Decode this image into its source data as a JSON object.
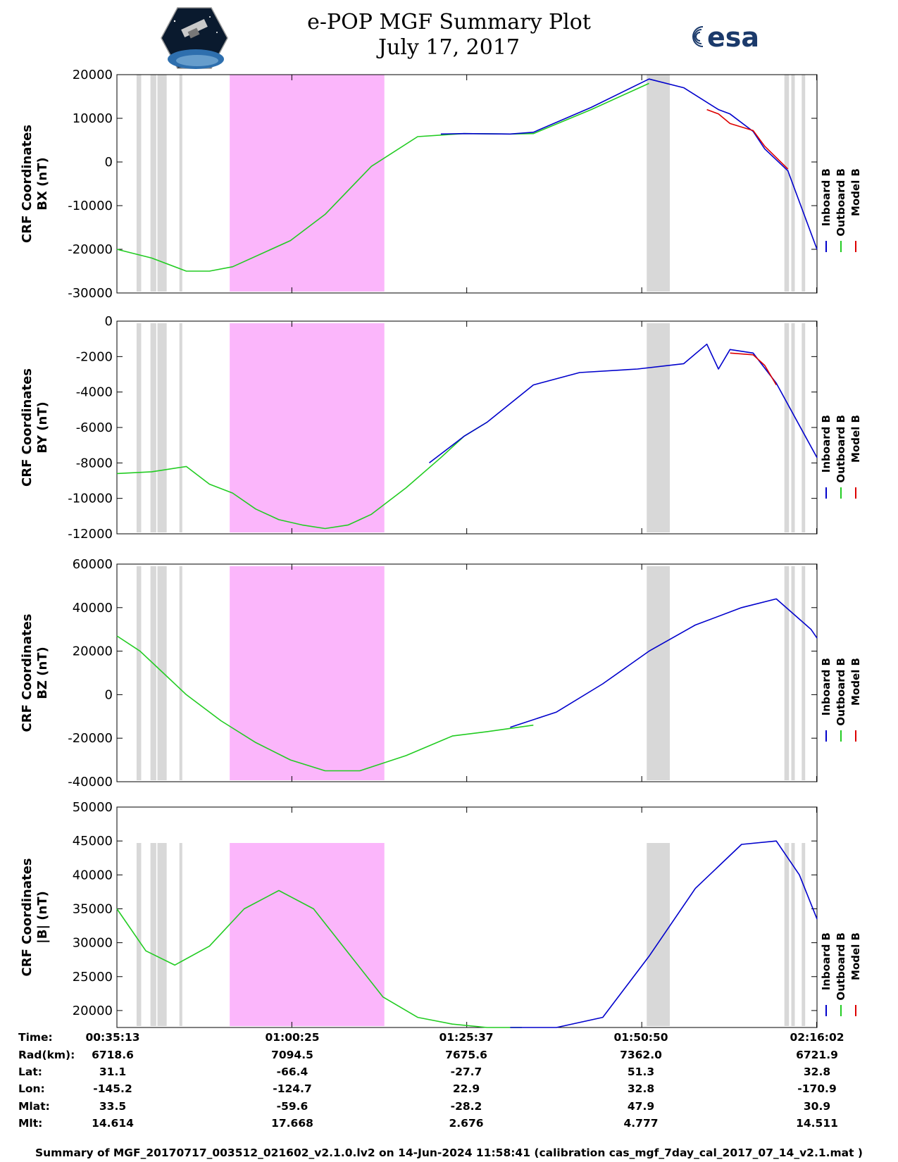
{
  "header": {
    "title_line1": "e-POP MGF Summary Plot",
    "title_line2": "July 17, 2017",
    "left_logo": "cassiope-mission-logo",
    "right_logo_text": "esa"
  },
  "colors": {
    "inboard": "#0000cc",
    "outboard": "#22cc22",
    "model": "#dd0000",
    "pink_band": "#fbb6fb",
    "gray_band": "#d8d8d8"
  },
  "legend": {
    "entries": [
      "Inboard B",
      "Outboard B",
      "Model B"
    ]
  },
  "chart_data": [
    {
      "type": "line",
      "ylabel_line1": "CRF Coordinates",
      "ylabel_line2": "BX (nT)",
      "ylim": [
        -30000,
        20000
      ],
      "yticks": [
        20000,
        10000,
        0,
        -10000,
        -20000,
        -30000
      ],
      "ytick_labels": [
        "20000",
        "10000",
        "0",
        "-10000",
        "-20000",
        "-30000"
      ],
      "x_unit": "seconds since 00:35:13",
      "xlim": [
        0,
        6052
      ],
      "series": [
        {
          "name": "Outboard B",
          "x": [
            0,
            300,
            600,
            800,
            1000,
            1500,
            1800,
            2200,
            2600,
            3000,
            3400,
            3600,
            4100,
            4600
          ],
          "values": [
            -20000,
            -22000,
            -25000,
            -25000,
            -24000,
            -18000,
            -12000,
            -1000,
            5800,
            6500,
            6400,
            6500,
            12000,
            18000
          ]
        },
        {
          "name": "Inboard B",
          "x": [
            2800,
            3000,
            3400,
            3600,
            4100,
            4600,
            4900,
            5200,
            5300,
            5500,
            5600,
            5800,
            6052
          ],
          "values": [
            6400,
            6500,
            6400,
            6800,
            12500,
            19000,
            17000,
            12000,
            11000,
            7000,
            3000,
            -2000,
            -20000
          ]
        },
        {
          "name": "Model B",
          "x": [
            5100,
            5200,
            5300,
            5500,
            5600,
            5800
          ],
          "values": [
            12000,
            11000,
            8800,
            7200,
            3600,
            -1600
          ]
        }
      ]
    },
    {
      "type": "line",
      "ylabel_line1": "CRF Coordinates",
      "ylabel_line2": "BY (nT)",
      "ylim": [
        -12000,
        0
      ],
      "yticks": [
        0,
        -2000,
        -4000,
        -6000,
        -8000,
        -10000,
        -12000
      ],
      "ytick_labels": [
        "0",
        "-2000",
        "-4000",
        "-6000",
        "-8000",
        "-10000",
        "-12000"
      ],
      "x_unit": "seconds since 00:35:13",
      "xlim": [
        0,
        6052
      ],
      "series": [
        {
          "name": "Outboard B",
          "x": [
            0,
            300,
            400,
            600,
            800,
            1000,
            1200,
            1400,
            1600,
            1800,
            2000,
            2200,
            2500,
            2800,
            3000,
            3200
          ],
          "values": [
            -8600,
            -8500,
            -8400,
            -8200,
            -9200,
            -9700,
            -10600,
            -11200,
            -11500,
            -11700,
            -11500,
            -10900,
            -9400,
            -7700,
            -6500,
            -5700
          ]
        },
        {
          "name": "Inboard B",
          "x": [
            2700,
            3000,
            3200,
            3600,
            4000,
            4500,
            4900,
            5100,
            5200,
            5300,
            5500,
            5700,
            6052
          ],
          "values": [
            -8000,
            -6500,
            -5700,
            -3600,
            -2900,
            -2700,
            -2400,
            -1300,
            -2700,
            -1600,
            -1800,
            -3500,
            -7700
          ]
        },
        {
          "name": "Model B",
          "x": [
            5300,
            5500,
            5600,
            5700
          ],
          "values": [
            -1800,
            -1900,
            -2500,
            -3600
          ]
        }
      ]
    },
    {
      "type": "line",
      "ylabel_line1": "CRF Coordinates",
      "ylabel_line2": "BZ (nT)",
      "ylim": [
        -40000,
        60000
      ],
      "yticks": [
        60000,
        40000,
        20000,
        0,
        -20000,
        -40000
      ],
      "ytick_labels": [
        "60000",
        "40000",
        "20000",
        "0",
        "-20000",
        "-40000"
      ],
      "x_unit": "seconds since 00:35:13",
      "xlim": [
        0,
        6052
      ],
      "series": [
        {
          "name": "Outboard B",
          "x": [
            0,
            200,
            400,
            600,
            900,
            1200,
            1500,
            1800,
            2100,
            2500,
            2900,
            3200,
            3600
          ],
          "values": [
            27000,
            20000,
            10000,
            0,
            -12000,
            -22000,
            -30000,
            -35000,
            -35000,
            -28000,
            -19000,
            -17000,
            -14000
          ]
        },
        {
          "name": "Inboard B",
          "x": [
            3400,
            3800,
            4200,
            4600,
            5000,
            5400,
            5700,
            6000,
            6052
          ],
          "values": [
            -15000,
            -8000,
            5000,
            20000,
            32000,
            40000,
            44000,
            30000,
            26000
          ]
        }
      ]
    },
    {
      "type": "line",
      "ylabel_line1": "CRF Coordinates",
      "ylabel_line2": "|B| (nT)",
      "ylim": [
        17500,
        50000
      ],
      "yticks": [
        50000,
        45000,
        40000,
        35000,
        30000,
        25000,
        20000
      ],
      "ytick_labels": [
        "50000",
        "45000",
        "40000",
        "35000",
        "30000",
        "25000",
        "20000"
      ],
      "x_unit": "seconds since 00:35:13",
      "xlim": [
        0,
        6052
      ],
      "series": [
        {
          "name": "Outboard B",
          "x": [
            0,
            250,
            500,
            800,
            1100,
            1400,
            1700,
            2000,
            2300,
            2600,
            2900,
            3200,
            3500
          ],
          "values": [
            35000,
            28800,
            26700,
            29500,
            35000,
            37700,
            35000,
            28500,
            22000,
            19000,
            18000,
            17500,
            17500
          ]
        },
        {
          "name": "Inboard B",
          "x": [
            3400,
            3800,
            4200,
            4600,
            5000,
            5400,
            5700,
            5900,
            6052
          ],
          "values": [
            17500,
            17500,
            19000,
            28000,
            38000,
            44500,
            45000,
            40000,
            33500
          ]
        }
      ]
    }
  ],
  "x_axis_table": {
    "row_labels": [
      "Time:",
      "Rad(km):",
      "Lat:",
      "Lon:",
      "Mlat:",
      "Mlt:"
    ],
    "tick_seconds": [
      0,
      1512,
      3024,
      4537,
      6049
    ],
    "columns": [
      [
        "00:35:13",
        "6718.6",
        "31.1",
        "-145.2",
        "33.5",
        "14.614"
      ],
      [
        "01:00:25",
        "7094.5",
        "-66.4",
        "-124.7",
        "-59.6",
        "17.668"
      ],
      [
        "01:25:37",
        "7675.6",
        "-27.7",
        "22.9",
        "-28.2",
        "2.676"
      ],
      [
        "01:50:50",
        "7362.0",
        "51.3",
        "32.8",
        "47.9",
        "4.777"
      ],
      [
        "02:16:02",
        "6721.9",
        "32.8",
        "-170.9",
        "30.9",
        "14.511"
      ]
    ]
  },
  "bands": {
    "pink": [
      [
        975,
        2312
      ]
    ],
    "gray": [
      [
        170,
        210
      ],
      [
        290,
        340
      ],
      [
        350,
        430
      ],
      [
        540,
        565
      ],
      [
        4580,
        4780
      ],
      [
        5770,
        5810
      ],
      [
        5830,
        5860
      ],
      [
        5920,
        5950
      ]
    ]
  },
  "footer_text": "Summary of MGF_20170717_003512_021602_v2.1.0.lv2 on 14-Jun-2024 11:58:41 (calibration cas_mgf_7day_cal_2017_07_14_v2.1.mat )"
}
